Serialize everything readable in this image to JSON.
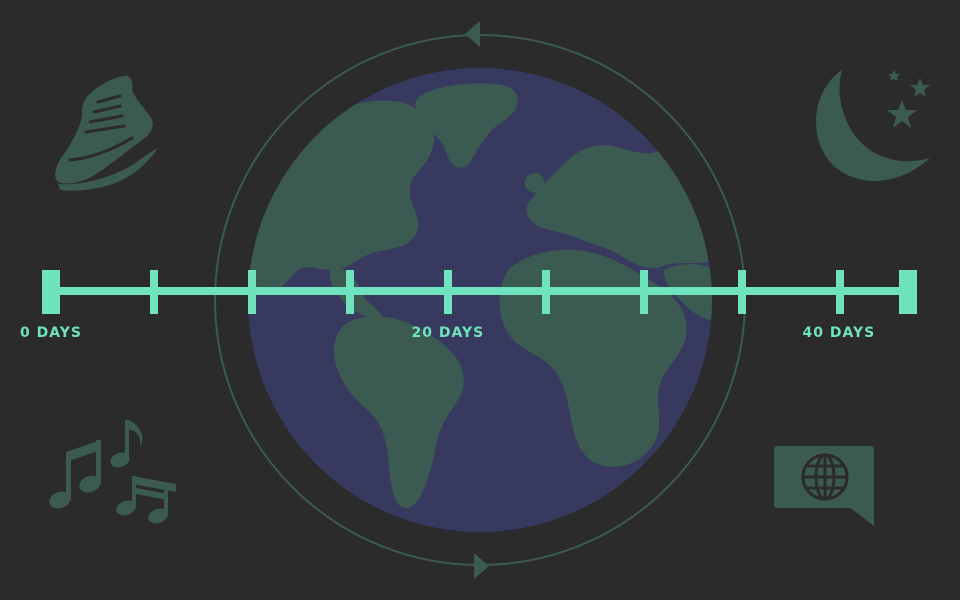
{
  "timeline": {
    "labels": [
      {
        "text": "0 DAYS",
        "tick_index": 0
      },
      {
        "text": "20 DAYS",
        "tick_index": 4
      },
      {
        "text": "40 DAYS",
        "tick_index": 8
      }
    ],
    "tick_count": 10
  },
  "icons": {
    "top_left": "running-shoe-icon",
    "top_right": "moon-and-stars-icon",
    "bottom_left": "music-notes-icon",
    "bottom_right": "language-speech-bubble-icon",
    "center": "globe-earth-icon"
  },
  "colors": {
    "background": "#2b2b2b",
    "timeline": "#6fe3bd",
    "icons": "#3b5a52",
    "ocean": "#373a5e",
    "land": "#3b5a52",
    "orbit": "#3b5a52"
  }
}
